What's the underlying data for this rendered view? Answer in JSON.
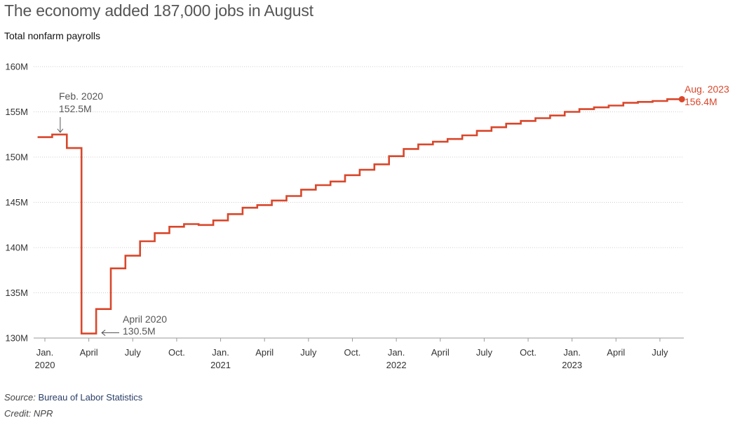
{
  "header": {
    "title": "The economy added 187,000 jobs in August",
    "subtitle": "Total nonfarm payrolls"
  },
  "footer": {
    "source_label": "Source:",
    "source_text": "Bureau of Labor Statistics",
    "credit": "Credit: NPR"
  },
  "colors": {
    "line": "#d9472b",
    "grid": "#cccccc",
    "annotation": "#555555",
    "axis_text": "#333333"
  },
  "chart_data": {
    "type": "line",
    "style": "step",
    "title": "The economy added 187,000 jobs in August",
    "subtitle": "Total nonfarm payrolls",
    "ylim": [
      130,
      160
    ],
    "y_unit": "M",
    "ytick_values": [
      130,
      135,
      140,
      145,
      150,
      155,
      160
    ],
    "ytick_labels": [
      "130M",
      "135M",
      "140M",
      "145M",
      "150M",
      "155M",
      "160M"
    ],
    "grid": true,
    "x_ticks": [
      {
        "date": "2020-01",
        "label": "Jan.",
        "year": "2020"
      },
      {
        "date": "2020-04",
        "label": "April",
        "year": ""
      },
      {
        "date": "2020-07",
        "label": "July",
        "year": ""
      },
      {
        "date": "2020-10",
        "label": "Oct.",
        "year": ""
      },
      {
        "date": "2021-01",
        "label": "Jan.",
        "year": "2021"
      },
      {
        "date": "2021-04",
        "label": "April",
        "year": ""
      },
      {
        "date": "2021-07",
        "label": "July",
        "year": ""
      },
      {
        "date": "2021-10",
        "label": "Oct.",
        "year": ""
      },
      {
        "date": "2022-01",
        "label": "Jan.",
        "year": "2022"
      },
      {
        "date": "2022-04",
        "label": "April",
        "year": ""
      },
      {
        "date": "2022-07",
        "label": "July",
        "year": ""
      },
      {
        "date": "2022-10",
        "label": "Oct.",
        "year": ""
      },
      {
        "date": "2023-01",
        "label": "Jan.",
        "year": "2023"
      },
      {
        "date": "2023-04",
        "label": "April",
        "year": ""
      },
      {
        "date": "2023-07",
        "label": "July",
        "year": ""
      }
    ],
    "series": [
      {
        "x": [
          "2020-01",
          "2020-02",
          "2020-03",
          "2020-04",
          "2020-05",
          "2020-06",
          "2020-07",
          "2020-08",
          "2020-09",
          "2020-10",
          "2020-11",
          "2020-12",
          "2021-01",
          "2021-02",
          "2021-03",
          "2021-04",
          "2021-05",
          "2021-06",
          "2021-07",
          "2021-08",
          "2021-09",
          "2021-10",
          "2021-11",
          "2021-12",
          "2022-01",
          "2022-02",
          "2022-03",
          "2022-04",
          "2022-05",
          "2022-06",
          "2022-07",
          "2022-08",
          "2022-09",
          "2022-10",
          "2022-11",
          "2022-12",
          "2023-01",
          "2023-02",
          "2023-03",
          "2023-04",
          "2023-05",
          "2023-06",
          "2023-07",
          "2023-08"
        ],
        "values": [
          152.2,
          152.5,
          151.0,
          130.5,
          133.2,
          137.7,
          139.1,
          140.7,
          141.6,
          142.3,
          142.6,
          142.5,
          143.0,
          143.7,
          144.4,
          144.7,
          145.2,
          145.7,
          146.4,
          146.9,
          147.3,
          148.0,
          148.6,
          149.2,
          150.1,
          150.9,
          151.4,
          151.7,
          152.0,
          152.4,
          152.9,
          153.3,
          153.7,
          154.0,
          154.3,
          154.6,
          155.0,
          155.3,
          155.5,
          155.7,
          156.0,
          156.1,
          156.2,
          156.4
        ]
      }
    ],
    "annotations": [
      {
        "date": "2020-02",
        "value": 152.5,
        "line1": "Feb. 2020",
        "line2": "152.5M"
      },
      {
        "date": "2020-04",
        "value": 130.5,
        "line1": "April 2020",
        "line2": "130.5M"
      },
      {
        "date": "2023-08",
        "value": 156.4,
        "line1": "Aug. 2023",
        "line2": "156.4M"
      }
    ]
  }
}
